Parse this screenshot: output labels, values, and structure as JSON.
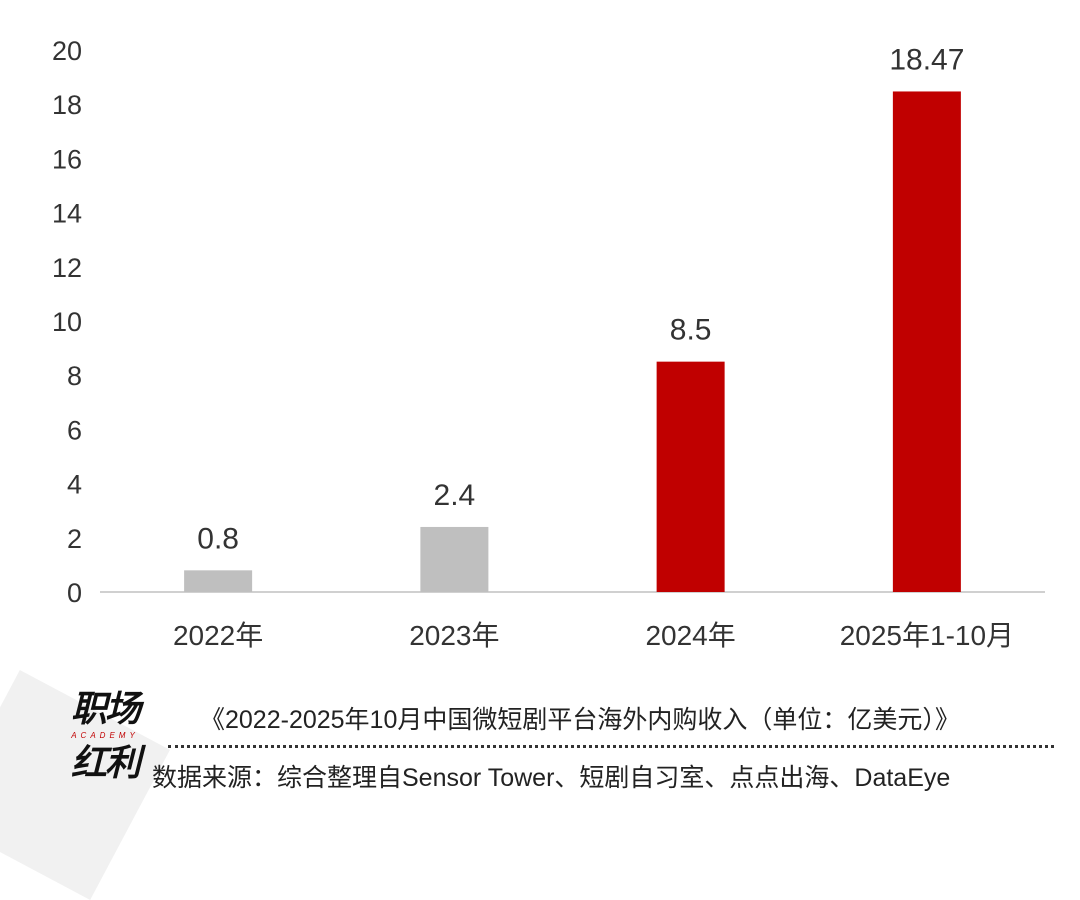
{
  "chart_data": {
    "type": "bar",
    "title": "《2022-2025年10月中国微短剧平台海外内购收入（单位：亿美元）》",
    "categories": [
      "2022年",
      "2023年",
      "2024年",
      "2025年1-10月"
    ],
    "values": [
      0.8,
      2.4,
      8.5,
      18.47
    ],
    "value_labels": [
      "0.8",
      "2.4",
      "8.5",
      "18.47"
    ],
    "bar_colors": [
      "#bfbfbf",
      "#bfbfbf",
      "#c00000",
      "#c00000"
    ],
    "ylim": [
      0,
      20
    ],
    "yticks": [
      0,
      2,
      4,
      6,
      8,
      10,
      12,
      14,
      16,
      18,
      20
    ],
    "xlabel": "",
    "ylabel": "",
    "grid": false
  },
  "branding": {
    "logo_top": "职场",
    "logo_sub": "ACADEMY",
    "logo_bottom": "红利"
  },
  "source": "数据来源：综合整理自Sensor Tower、短剧自习室、点点出海、DataEye",
  "colors": {
    "gray_bar": "#bfbfbf",
    "red_bar": "#c00000",
    "axis": "#d0d0d0"
  }
}
